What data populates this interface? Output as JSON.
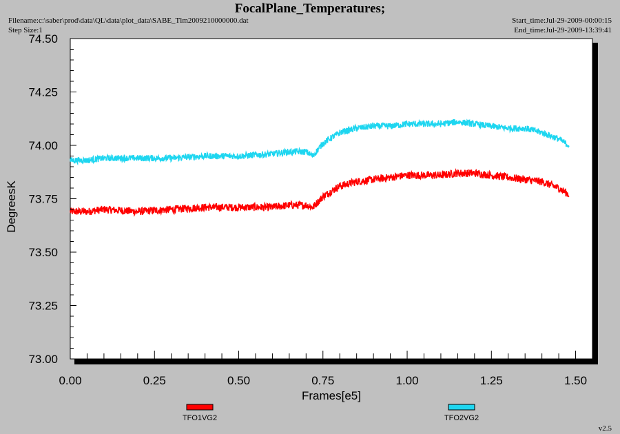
{
  "header": {
    "title": "FocalPlane_Temperatures;",
    "filename": "Filename:c:\\saber\\prod\\data\\QL\\data\\plot_data\\SABE_Tlm2009210000000.dat",
    "step_size": "Step Size:1",
    "start_time": "Start_time:Jul-29-2009-00:00:15",
    "end_time": "End_time:Jul-29-2009-13:39:41"
  },
  "footer": {
    "version": "v2.5"
  },
  "colors": {
    "background": "#c0c0c0",
    "plot_area": "#ffffff",
    "series1": "#ff0000",
    "series2": "#1ed6f0"
  },
  "chart_data": {
    "type": "line",
    "title": "FocalPlane_Temperatures;",
    "xlabel": "Frames[e5]",
    "ylabel": "DegreesK",
    "xlim": [
      0.0,
      1.55
    ],
    "ylim": [
      73.0,
      74.5
    ],
    "x_ticks": [
      "0.00",
      "0.25",
      "0.50",
      "0.75",
      "1.00",
      "1.25",
      "1.50"
    ],
    "y_ticks": [
      "73.00",
      "73.25",
      "73.50",
      "73.75",
      "74.00",
      "74.25",
      "74.50"
    ],
    "grid": false,
    "legend_position": "bottom",
    "series": [
      {
        "name": "TFO1VG2",
        "color": "#ff0000",
        "noise": 0.018,
        "x": [
          0.0,
          0.05,
          0.1,
          0.2,
          0.3,
          0.4,
          0.5,
          0.6,
          0.65,
          0.7,
          0.72,
          0.75,
          0.8,
          0.85,
          0.9,
          0.95,
          1.0,
          1.05,
          1.1,
          1.15,
          1.2,
          1.25,
          1.3,
          1.35,
          1.4,
          1.45,
          1.48
        ],
        "y": [
          73.69,
          73.69,
          73.7,
          73.69,
          73.7,
          73.71,
          73.71,
          73.71,
          73.72,
          73.72,
          73.71,
          73.76,
          73.81,
          73.83,
          73.84,
          73.85,
          73.86,
          73.86,
          73.86,
          73.87,
          73.87,
          73.86,
          73.85,
          73.84,
          73.83,
          73.8,
          73.77
        ]
      },
      {
        "name": "TFO2VG2",
        "color": "#1ed6f0",
        "noise": 0.015,
        "x": [
          0.0,
          0.05,
          0.1,
          0.2,
          0.3,
          0.4,
          0.5,
          0.6,
          0.65,
          0.7,
          0.72,
          0.75,
          0.8,
          0.85,
          0.9,
          0.95,
          1.0,
          1.05,
          1.1,
          1.15,
          1.2,
          1.25,
          1.3,
          1.35,
          1.4,
          1.45,
          1.48
        ],
        "y": [
          73.93,
          73.93,
          73.94,
          73.94,
          73.94,
          73.95,
          73.95,
          73.96,
          73.97,
          73.97,
          73.95,
          74.01,
          74.06,
          74.08,
          74.09,
          74.09,
          74.1,
          74.1,
          74.1,
          74.11,
          74.1,
          74.09,
          74.08,
          74.08,
          74.06,
          74.03,
          74.0
        ]
      }
    ]
  }
}
